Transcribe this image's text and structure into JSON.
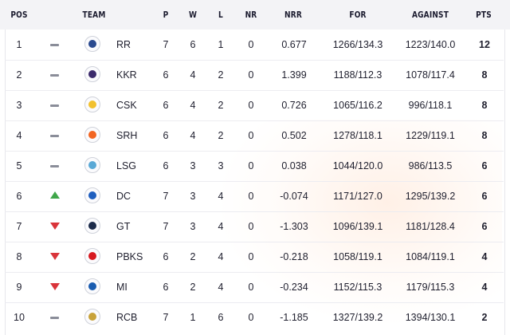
{
  "columns": {
    "pos": "POS",
    "team": "TEAM",
    "p": "P",
    "w": "W",
    "l": "L",
    "nr": "NR",
    "nrr": "NRR",
    "for": "FOR",
    "against": "AGAINST",
    "pts": "PTS"
  },
  "trend_colors": {
    "up": "#3fa64a",
    "down": "#d9343a",
    "same": "#8a8d99"
  },
  "rows": [
    {
      "pos": "1",
      "trend": "same",
      "logo": "rr-logo-icon",
      "logo_color": "#2a4a8f",
      "team": "RR",
      "p": "7",
      "w": "6",
      "l": "1",
      "nr": "0",
      "nrr": "0.677",
      "for": "1266/134.3",
      "against": "1223/140.0",
      "pts": "12"
    },
    {
      "pos": "2",
      "trend": "same",
      "logo": "kkr-logo-icon",
      "logo_color": "#3b2a6b",
      "team": "KKR",
      "p": "6",
      "w": "4",
      "l": "2",
      "nr": "0",
      "nrr": "1.399",
      "for": "1188/112.3",
      "against": "1078/117.4",
      "pts": "8"
    },
    {
      "pos": "3",
      "trend": "same",
      "logo": "csk-logo-icon",
      "logo_color": "#f2c12e",
      "team": "CSK",
      "p": "6",
      "w": "4",
      "l": "2",
      "nr": "0",
      "nrr": "0.726",
      "for": "1065/116.2",
      "against": "996/118.1",
      "pts": "8"
    },
    {
      "pos": "4",
      "trend": "same",
      "logo": "srh-logo-icon",
      "logo_color": "#f26522",
      "team": "SRH",
      "p": "6",
      "w": "4",
      "l": "2",
      "nr": "0",
      "nrr": "0.502",
      "for": "1278/118.1",
      "against": "1229/119.1",
      "pts": "8"
    },
    {
      "pos": "5",
      "trend": "same",
      "logo": "lsg-logo-icon",
      "logo_color": "#5aa9d6",
      "team": "LSG",
      "p": "6",
      "w": "3",
      "l": "3",
      "nr": "0",
      "nrr": "0.038",
      "for": "1044/120.0",
      "against": "986/113.5",
      "pts": "6"
    },
    {
      "pos": "6",
      "trend": "up",
      "logo": "dc-logo-icon",
      "logo_color": "#1f5fbf",
      "team": "DC",
      "p": "7",
      "w": "3",
      "l": "4",
      "nr": "0",
      "nrr": "-0.074",
      "for": "1171/127.0",
      "against": "1295/139.2",
      "pts": "6"
    },
    {
      "pos": "7",
      "trend": "down",
      "logo": "gt-logo-icon",
      "logo_color": "#1c2b4a",
      "team": "GT",
      "p": "7",
      "w": "3",
      "l": "4",
      "nr": "0",
      "nrr": "-1.303",
      "for": "1096/139.1",
      "against": "1181/128.4",
      "pts": "6"
    },
    {
      "pos": "8",
      "trend": "down",
      "logo": "pbks-logo-icon",
      "logo_color": "#d71920",
      "team": "PBKS",
      "p": "6",
      "w": "2",
      "l": "4",
      "nr": "0",
      "nrr": "-0.218",
      "for": "1058/119.1",
      "against": "1084/119.1",
      "pts": "4"
    },
    {
      "pos": "9",
      "trend": "down",
      "logo": "mi-logo-icon",
      "logo_color": "#1a5cb0",
      "team": "MI",
      "p": "6",
      "w": "2",
      "l": "4",
      "nr": "0",
      "nrr": "-0.234",
      "for": "1152/115.3",
      "against": "1179/115.3",
      "pts": "4"
    },
    {
      "pos": "10",
      "trend": "same",
      "logo": "rcb-logo-icon",
      "logo_color": "#c8a23a",
      "team": "RCB",
      "p": "7",
      "w": "1",
      "l": "6",
      "nr": "0",
      "nrr": "-1.185",
      "for": "1327/139.2",
      "against": "1394/130.1",
      "pts": "2"
    }
  ]
}
